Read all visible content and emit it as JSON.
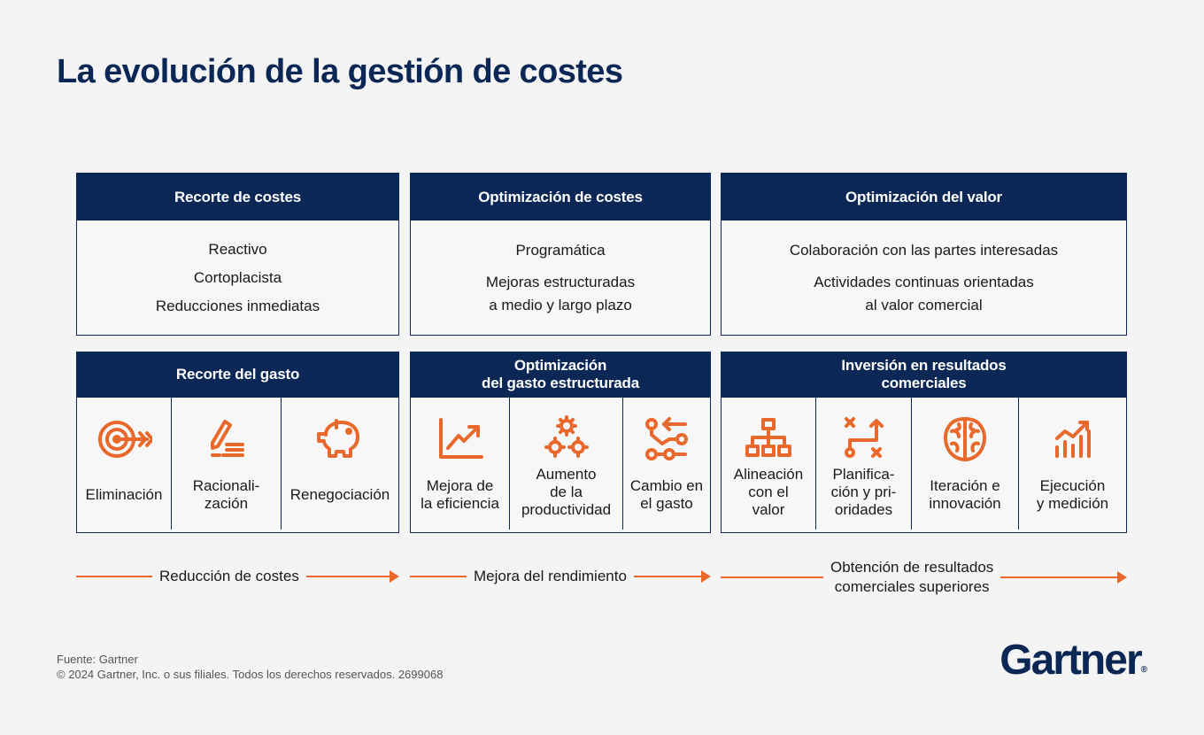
{
  "title": "La evolución de la gestión de costes",
  "colors": {
    "navy": "#0b2755",
    "orange": "#e8692b"
  },
  "top_boxes": [
    {
      "header": "Recorte de costes",
      "lines": [
        "Reactivo",
        "Cortoplacista",
        "Reducciones inmediatas"
      ]
    },
    {
      "header": "Optimización de costes",
      "lines": [
        "Programática",
        "Mejoras estructuradas\na medio y largo plazo"
      ]
    },
    {
      "header": "Optimización del valor",
      "lines": [
        "Colaboración con las partes interesadas",
        "Actividades continuas orientadas\nal valor comercial"
      ]
    }
  ],
  "bottom_boxes": [
    {
      "header": "Recorte del gasto",
      "items": [
        {
          "icon": "target-icon",
          "label": "Eliminación"
        },
        {
          "icon": "pencil-list-icon",
          "label": "Racionali-\nzación"
        },
        {
          "icon": "piggy-bank-icon",
          "label": "Renegociación"
        }
      ]
    },
    {
      "header": "Optimización\ndel gasto estructurada",
      "items": [
        {
          "icon": "trend-chart-icon",
          "label": "Mejora de\nla eficiencia"
        },
        {
          "icon": "gears-icon",
          "label": "Aumento\nde la\nproductividad"
        },
        {
          "icon": "flow-arrows-icon",
          "label": "Cambio en\nel gasto"
        }
      ]
    },
    {
      "header": "Inversión en resultados\ncomerciales",
      "items": [
        {
          "icon": "org-chart-icon",
          "label": "Alineación\ncon el\nvalor"
        },
        {
          "icon": "planning-icon",
          "label": "Planifica-\nción y pri-\noridades"
        },
        {
          "icon": "brain-icon",
          "label": "Iteración e\ninnovación"
        },
        {
          "icon": "bar-chart-icon",
          "label": "Ejecución\ny medición"
        }
      ]
    }
  ],
  "arrows": [
    {
      "label": "Reducción de costes"
    },
    {
      "label": "Mejora del rendimiento"
    },
    {
      "label": "Obtención de resultados\ncomerciales superiores"
    }
  ],
  "footer": {
    "source": "Fuente: Gartner",
    "copyright": "© 2024 Gartner, Inc. o sus filiales. Todos los derechos reservados. 2699068"
  },
  "logo": {
    "text": "Gartner",
    "mark": "®"
  }
}
